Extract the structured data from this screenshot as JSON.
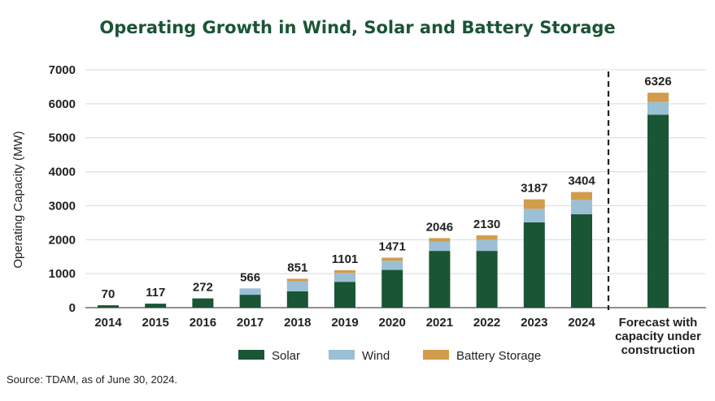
{
  "chart_data": {
    "type": "bar",
    "stacked": true,
    "title": "Operating Growth in Wind, Solar and Battery Storage",
    "ylabel": "Operating Capacity (MW)",
    "xlabel": "",
    "ylim": [
      0,
      7000
    ],
    "yticks": [
      "0",
      "1000",
      "2000",
      "3000",
      "4000",
      "5000",
      "6000",
      "7000"
    ],
    "grid": "horizontal",
    "legend_position": "bottom",
    "categories": [
      "2014",
      "2015",
      "2016",
      "2017",
      "2018",
      "2019",
      "2020",
      "2021",
      "2022",
      "2023",
      "2024",
      "Forecast with capacity under construction"
    ],
    "category_label_lines": [
      [
        "2014"
      ],
      [
        "2015"
      ],
      [
        "2016"
      ],
      [
        "2017"
      ],
      [
        "2018"
      ],
      [
        "2019"
      ],
      [
        "2020"
      ],
      [
        "2021"
      ],
      [
        "2022"
      ],
      [
        "2023"
      ],
      [
        "2024"
      ],
      [
        "Forecast with",
        "capacity under",
        "construction"
      ]
    ],
    "series": [
      {
        "name": "Solar",
        "color": "#1a5535",
        "values": [
          70,
          117,
          272,
          380,
          480,
          760,
          1110,
          1670,
          1670,
          2510,
          2750,
          5680
        ]
      },
      {
        "name": "Wind",
        "color": "#9bbfd4",
        "values": [
          0,
          0,
          0,
          186,
          290,
          260,
          270,
          270,
          330,
          400,
          420,
          370
        ]
      },
      {
        "name": "Battery Storage",
        "color": "#d19c4c",
        "values": [
          0,
          0,
          0,
          0,
          81,
          81,
          91,
          106,
          130,
          277,
          234,
          276
        ]
      }
    ],
    "totals": [
      70,
      117,
      272,
      566,
      851,
      1101,
      1471,
      2046,
      2130,
      3187,
      3404,
      6326
    ],
    "total_labels": [
      "70",
      "117",
      "272",
      "566",
      "851",
      "1101",
      "1471",
      "2046",
      "2130",
      "3187",
      "3404",
      "6326"
    ],
    "separator_before_category": "Forecast with capacity under construction"
  },
  "footer": {
    "source": "Source: TDAM, as of June 30, 2024."
  }
}
